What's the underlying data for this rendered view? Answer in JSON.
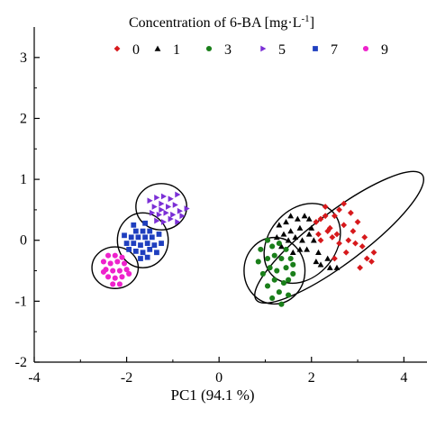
{
  "chart_data": {
    "type": "scatter",
    "title": "",
    "xlabel": "PC1 (94.1 %)",
    "ylabel": "",
    "xlim": [
      -4,
      4.5
    ],
    "ylim": [
      -2,
      3.5
    ],
    "x_ticks": [
      "-4",
      "-2",
      "0",
      "2",
      "4"
    ],
    "y_ticks": [
      "-2",
      "-1",
      "0",
      "1",
      "2",
      "3"
    ],
    "legend_title": "Concentration of 6-BA [mg·L",
    "legend_title_sup": "-1",
    "legend_title_end": "]",
    "legend_position": "top",
    "grid": false,
    "series": [
      {
        "name": "0",
        "marker": "diamond",
        "color": "#d7191c",
        "points": [
          [
            2.1,
            0.3
          ],
          [
            2.2,
            0.35
          ],
          [
            2.3,
            0.4
          ],
          [
            2.5,
            0.4
          ],
          [
            2.6,
            0.5
          ],
          [
            2.7,
            0.6
          ],
          [
            2.3,
            0.55
          ],
          [
            2.4,
            0.2
          ],
          [
            2.55,
            0.1
          ],
          [
            2.7,
            0.25
          ],
          [
            2.85,
            0.45
          ],
          [
            2.9,
            0.15
          ],
          [
            3.0,
            0.3
          ],
          [
            2.8,
            0.0
          ],
          [
            2.6,
            -0.05
          ],
          [
            2.45,
            0.05
          ],
          [
            3.1,
            -0.1
          ],
          [
            3.2,
            -0.3
          ],
          [
            3.3,
            -0.35
          ],
          [
            3.35,
            -0.2
          ],
          [
            3.05,
            -0.45
          ],
          [
            2.5,
            -0.3
          ],
          [
            2.2,
            0.0
          ],
          [
            2.75,
            -0.2
          ],
          [
            2.95,
            -0.05
          ],
          [
            2.35,
            0.15
          ],
          [
            2.15,
            0.1
          ],
          [
            3.15,
            0.05
          ]
        ]
      },
      {
        "name": "1",
        "marker": "triangle",
        "color": "#000000",
        "points": [
          [
            1.3,
            0.25
          ],
          [
            1.45,
            0.3
          ],
          [
            1.55,
            0.4
          ],
          [
            1.7,
            0.35
          ],
          [
            1.85,
            0.4
          ],
          [
            1.95,
            0.35
          ],
          [
            1.75,
            0.2
          ],
          [
            1.55,
            0.15
          ],
          [
            1.4,
            0.1
          ],
          [
            1.25,
            0.05
          ],
          [
            1.5,
            0.0
          ],
          [
            1.65,
            0.05
          ],
          [
            1.8,
            0.0
          ],
          [
            1.95,
            0.1
          ],
          [
            2.05,
            0.0
          ],
          [
            1.9,
            -0.15
          ],
          [
            1.75,
            -0.15
          ],
          [
            2.15,
            -0.2
          ],
          [
            2.1,
            -0.35
          ],
          [
            2.2,
            -0.4
          ],
          [
            2.4,
            -0.45
          ],
          [
            2.55,
            -0.45
          ],
          [
            2.35,
            -0.3
          ],
          [
            1.6,
            -0.2
          ],
          [
            1.35,
            -0.1
          ],
          [
            2.0,
            0.2
          ]
        ]
      },
      {
        "name": "3",
        "marker": "circle",
        "color": "#1a7f1a",
        "points": [
          [
            1.15,
            -0.1
          ],
          [
            1.3,
            -0.05
          ],
          [
            1.45,
            -0.15
          ],
          [
            1.2,
            -0.25
          ],
          [
            1.05,
            -0.3
          ],
          [
            0.85,
            -0.35
          ],
          [
            1.35,
            -0.3
          ],
          [
            1.55,
            -0.3
          ],
          [
            1.1,
            -0.45
          ],
          [
            1.25,
            -0.5
          ],
          [
            1.45,
            -0.45
          ],
          [
            1.6,
            -0.55
          ],
          [
            0.95,
            -0.55
          ],
          [
            1.2,
            -0.65
          ],
          [
            1.4,
            -0.7
          ],
          [
            1.05,
            -0.75
          ],
          [
            1.3,
            -0.85
          ],
          [
            1.5,
            -0.9
          ],
          [
            1.15,
            -0.95
          ],
          [
            1.35,
            -1.05
          ],
          [
            1.5,
            -0.65
          ],
          [
            0.9,
            -0.15
          ],
          [
            1.05,
            0.0
          ],
          [
            1.6,
            -0.4
          ]
        ]
      },
      {
        "name": "5",
        "marker": "triangle-right",
        "color": "#7b2fd6",
        "points": [
          [
            -1.5,
            0.65
          ],
          [
            -1.35,
            0.7
          ],
          [
            -1.2,
            0.72
          ],
          [
            -1.05,
            0.68
          ],
          [
            -0.9,
            0.75
          ],
          [
            -1.4,
            0.55
          ],
          [
            -1.25,
            0.6
          ],
          [
            -1.1,
            0.55
          ],
          [
            -0.95,
            0.58
          ],
          [
            -1.45,
            0.45
          ],
          [
            -1.3,
            0.42
          ],
          [
            -1.15,
            0.45
          ],
          [
            -1.0,
            0.42
          ],
          [
            -0.85,
            0.48
          ],
          [
            -1.35,
            0.32
          ],
          [
            -1.2,
            0.3
          ],
          [
            -1.05,
            0.35
          ],
          [
            -0.9,
            0.3
          ],
          [
            -0.7,
            0.52
          ],
          [
            -0.8,
            0.4
          ],
          [
            -1.25,
            0.5
          ]
        ]
      },
      {
        "name": "7",
        "marker": "square",
        "color": "#1f3fbf",
        "points": [
          [
            -1.8,
            0.15
          ],
          [
            -1.65,
            0.15
          ],
          [
            -1.5,
            0.15
          ],
          [
            -1.9,
            0.05
          ],
          [
            -1.75,
            0.05
          ],
          [
            -1.6,
            0.05
          ],
          [
            -1.45,
            0.05
          ],
          [
            -1.3,
            0.1
          ],
          [
            -2.0,
            -0.05
          ],
          [
            -1.85,
            -0.05
          ],
          [
            -1.7,
            -0.08
          ],
          [
            -1.55,
            -0.05
          ],
          [
            -1.4,
            -0.08
          ],
          [
            -1.25,
            -0.05
          ],
          [
            -1.95,
            -0.15
          ],
          [
            -1.8,
            -0.18
          ],
          [
            -1.65,
            -0.2
          ],
          [
            -1.5,
            -0.15
          ],
          [
            -1.35,
            -0.2
          ],
          [
            -1.7,
            -0.3
          ],
          [
            -1.55,
            -0.28
          ],
          [
            -1.85,
            0.25
          ],
          [
            -1.6,
            0.28
          ],
          [
            -2.05,
            0.08
          ]
        ]
      },
      {
        "name": "9",
        "marker": "circle",
        "color": "#ee22cc",
        "points": [
          [
            -2.4,
            -0.25
          ],
          [
            -2.25,
            -0.25
          ],
          [
            -2.1,
            -0.28
          ],
          [
            -2.5,
            -0.35
          ],
          [
            -2.35,
            -0.38
          ],
          [
            -2.2,
            -0.35
          ],
          [
            -2.05,
            -0.38
          ],
          [
            -2.45,
            -0.48
          ],
          [
            -2.3,
            -0.5
          ],
          [
            -2.15,
            -0.5
          ],
          [
            -2.0,
            -0.48
          ],
          [
            -2.4,
            -0.6
          ],
          [
            -2.25,
            -0.62
          ],
          [
            -2.1,
            -0.6
          ],
          [
            -2.3,
            -0.72
          ],
          [
            -2.15,
            -0.72
          ],
          [
            -2.5,
            -0.52
          ],
          [
            -1.95,
            -0.55
          ]
        ]
      }
    ],
    "ellipses": [
      {
        "series": "0",
        "cx": 2.6,
        "cy": 0.05,
        "rx": 2.25,
        "ry": 0.42,
        "angle_deg": -37
      },
      {
        "series": "1",
        "cx": 1.8,
        "cy": -0.05,
        "rx": 0.95,
        "ry": 0.55,
        "angle_deg": -50
      },
      {
        "series": "3",
        "cx": 1.2,
        "cy": -0.5,
        "rx": 0.72,
        "ry": 0.5,
        "angle_deg": -90
      },
      {
        "series": "5",
        "cx": -1.25,
        "cy": 0.55,
        "rx": 0.55,
        "ry": 0.38,
        "angle_deg": 0
      },
      {
        "series": "7",
        "cx": -1.65,
        "cy": 0.0,
        "rx": 0.55,
        "ry": 0.45,
        "angle_deg": 0
      },
      {
        "series": "9",
        "cx": -2.25,
        "cy": -0.45,
        "rx": 0.45,
        "ry": 0.38,
        "angle_deg": -90
      }
    ]
  }
}
